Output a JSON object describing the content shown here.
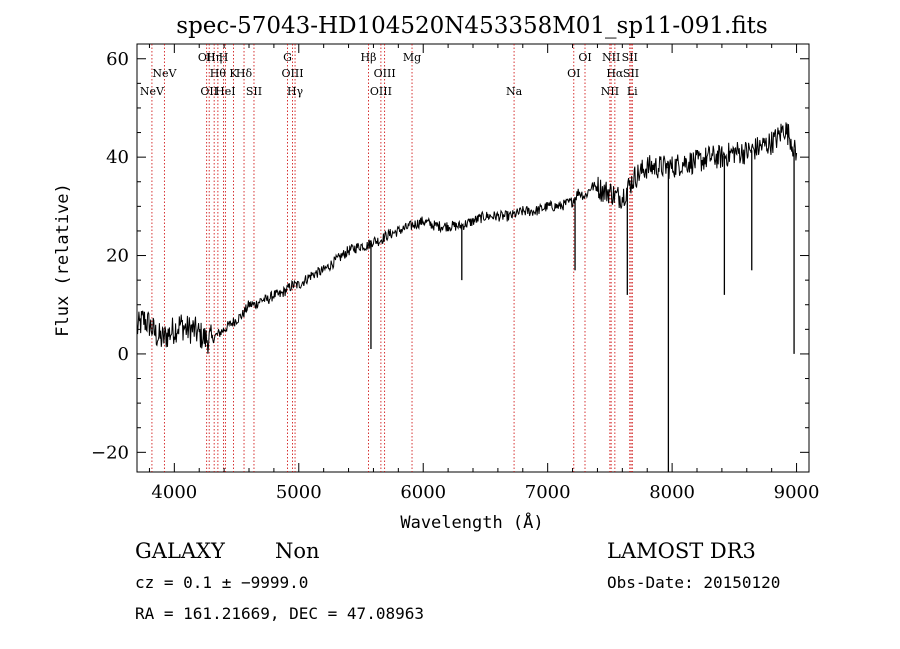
{
  "chart_data": {
    "type": "line",
    "title": "spec-57043-HD104520N453358M01_sp11-091.fits",
    "xlabel": "Wavelength (Å)",
    "ylabel": "Flux (relative)",
    "xlim": [
      3700,
      9100
    ],
    "ylim": [
      -24,
      63
    ],
    "xticks": [
      4000,
      5000,
      6000,
      7000,
      8000,
      9000
    ],
    "yticks": [
      -20,
      0,
      20,
      40,
      60
    ],
    "xtick_labels": [
      "4000",
      "5000",
      "6000",
      "7000",
      "8000",
      "9000"
    ],
    "ytick_labels": [
      "−20",
      "0",
      "20",
      "40",
      "60"
    ],
    "line_color": "#000000",
    "marker_color": "#cc0000",
    "spectrum": {
      "name": "flux",
      "x": [
        3700,
        3750,
        3800,
        3850,
        3900,
        3950,
        4000,
        4050,
        4100,
        4150,
        4200,
        4250,
        4300,
        4350,
        4400,
        4450,
        4500,
        4550,
        4600,
        4650,
        4700,
        4750,
        4800,
        4850,
        4900,
        4950,
        5000,
        5100,
        5200,
        5300,
        5400,
        5500,
        5550,
        5600,
        5650,
        5700,
        5800,
        5900,
        6000,
        6100,
        6200,
        6300,
        6400,
        6500,
        6600,
        6700,
        6800,
        6900,
        7000,
        7100,
        7200,
        7250,
        7300,
        7350,
        7400,
        7450,
        7500,
        7550,
        7600,
        7650,
        7700,
        7750,
        7800,
        7850,
        7900,
        7950,
        8000,
        8100,
        8200,
        8300,
        8400,
        8500,
        8600,
        8700,
        8800,
        8850,
        8900,
        8950,
        9000
      ],
      "y": [
        5,
        7,
        6,
        4,
        3,
        4,
        5,
        6,
        5,
        5,
        4,
        3,
        3,
        4,
        5,
        6,
        7,
        8,
        10,
        10,
        11,
        11,
        12,
        12,
        13,
        14,
        14,
        16,
        17,
        19,
        21,
        22,
        22,
        23,
        23,
        24,
        25,
        26,
        27,
        26,
        26,
        26,
        27,
        28,
        28,
        28,
        29,
        29,
        30,
        30,
        31,
        33,
        32,
        34,
        34,
        33,
        33,
        32,
        32,
        34,
        36,
        37,
        38,
        38,
        38,
        38,
        38,
        39,
        39,
        40,
        40,
        41,
        41,
        42,
        43,
        44,
        46,
        44,
        40
      ]
    },
    "dips": [
      {
        "x": 5580,
        "y": 1
      },
      {
        "x": 6310,
        "y": 15
      },
      {
        "x": 7970,
        "y": -24
      },
      {
        "x": 8420,
        "y": 12
      },
      {
        "x": 8640,
        "y": 17
      },
      {
        "x": 7640,
        "y": 12
      },
      {
        "x": 7220,
        "y": 17
      },
      {
        "x": 8980,
        "y": 0
      }
    ],
    "lines": [
      {
        "label": "NeV",
        "x": 3820,
        "row": 3
      },
      {
        "label": "NeV",
        "x": 3920,
        "row": 2
      },
      {
        "label": "OII",
        "x": 4260,
        "row": 1
      },
      {
        "label": "OII",
        "x": 4280,
        "row": 3
      },
      {
        "label": "Hη",
        "x": 4320,
        "row": 1
      },
      {
        "label": "Hθ",
        "x": 4350,
        "row": 2
      },
      {
        "label": "H",
        "x": 4395,
        "row": 1
      },
      {
        "label": "HeI",
        "x": 4410,
        "row": 3
      },
      {
        "label": "K",
        "x": 4475,
        "row": 2
      },
      {
        "label": "Hδ",
        "x": 4560,
        "row": 2
      },
      {
        "label": "SII",
        "x": 4640,
        "row": 3
      },
      {
        "label": "G",
        "x": 4910,
        "row": 1
      },
      {
        "label": "OIII",
        "x": 4950,
        "row": 2
      },
      {
        "label": "Hγ",
        "x": 4970,
        "row": 3
      },
      {
        "label": "Hβ",
        "x": 5560,
        "row": 1
      },
      {
        "label": "OIII",
        "x": 5690,
        "row": 2
      },
      {
        "label": "OIII",
        "x": 5660,
        "row": 3
      },
      {
        "label": "Mg",
        "x": 5910,
        "row": 1
      },
      {
        "label": "Na",
        "x": 6730,
        "row": 3
      },
      {
        "label": "OI",
        "x": 7300,
        "row": 1
      },
      {
        "label": "OI",
        "x": 7210,
        "row": 2
      },
      {
        "label": "NII",
        "x": 7510,
        "row": 1
      },
      {
        "label": "Hα",
        "x": 7540,
        "row": 2
      },
      {
        "label": "NII",
        "x": 7500,
        "row": 3
      },
      {
        "label": "SII",
        "x": 7660,
        "row": 1
      },
      {
        "label": "SII",
        "x": 7670,
        "row": 2
      },
      {
        "label": "Li",
        "x": 7680,
        "row": 3
      }
    ]
  },
  "info": {
    "class_label": "GALAXY",
    "subclass_label": "Non",
    "survey": "LAMOST DR3",
    "cz": "cz = 0.1 ± −9999.0",
    "obs_date": "Obs-Date: 20150120",
    "coords": "RA = 161.21669, DEC =  47.08963"
  }
}
